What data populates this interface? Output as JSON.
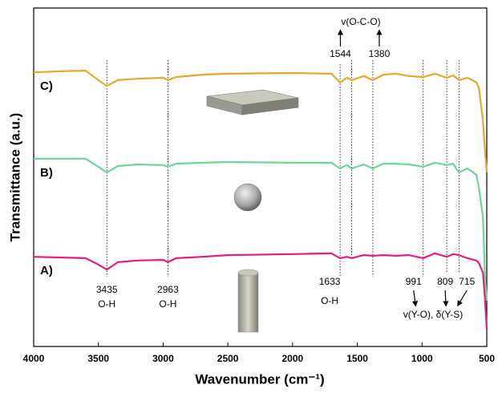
{
  "chart_data": {
    "type": "line",
    "x_label": "Wavenumber (cm⁻¹)",
    "y_label": "Transmittance (a.u.)",
    "xlim": [
      4000,
      500
    ],
    "xticks": [
      4000,
      3500,
      3000,
      2500,
      2000,
      1500,
      1000,
      500
    ],
    "ylim": [
      0,
      100
    ],
    "x": [
      4000,
      3800,
      3600,
      3500,
      3435,
      3350,
      3200,
      3000,
      2963,
      2900,
      2700,
      2500,
      2000,
      1700,
      1633,
      1580,
      1544,
      1450,
      1380,
      1300,
      1200,
      1100,
      991,
      900,
      809,
      760,
      715,
      650,
      580,
      560,
      530,
      515,
      500
    ],
    "series": [
      {
        "name": "C)",
        "color": "#e3a92f",
        "values": [
          81.0,
          81.3,
          81.5,
          78.7,
          77.0,
          78.7,
          79.1,
          79.4,
          78.7,
          79.6,
          80.3,
          80.6,
          80.8,
          80.6,
          78.0,
          79.4,
          78.7,
          79.9,
          78.7,
          80.3,
          80.6,
          79.9,
          79.6,
          80.6,
          79.4,
          80.1,
          78.7,
          79.4,
          78.0,
          76.3,
          66.8,
          58.5,
          51.4
        ]
      },
      {
        "name": "B)",
        "color": "#6dd49b",
        "values": [
          55.5,
          55.5,
          55.5,
          53.1,
          51.4,
          53.3,
          53.8,
          53.6,
          53.1,
          54.0,
          54.3,
          54.5,
          54.3,
          54.3,
          52.6,
          53.6,
          52.6,
          53.8,
          52.6,
          54.0,
          54.0,
          53.8,
          53.1,
          54.3,
          53.6,
          54.0,
          51.4,
          52.6,
          50.7,
          46.7,
          38.4,
          21.8,
          13.5
        ]
      },
      {
        "name": "A)",
        "color": "#e2207c",
        "values": [
          26.5,
          26.3,
          26.1,
          24.2,
          22.7,
          24.9,
          25.4,
          25.6,
          24.9,
          26.1,
          26.5,
          27.0,
          27.3,
          27.5,
          26.1,
          26.5,
          26.1,
          27.0,
          26.8,
          27.0,
          26.8,
          27.0,
          26.1,
          27.5,
          26.5,
          27.3,
          27.0,
          26.1,
          25.4,
          24.6,
          21.8,
          14.7,
          5.2
        ]
      }
    ],
    "annotations": [
      {
        "x": 3435,
        "note": "O-H"
      },
      {
        "x": 2963,
        "note": "O-H"
      },
      {
        "x": 1633,
        "note": "O-H"
      },
      {
        "x": 1544
      },
      {
        "x": 1380
      },
      {
        "x": 991
      },
      {
        "x": 809
      },
      {
        "x": 715
      }
    ],
    "group_labels": [
      "v(O-C-O)",
      "v(Y-O), δ(Y-S)"
    ]
  }
}
